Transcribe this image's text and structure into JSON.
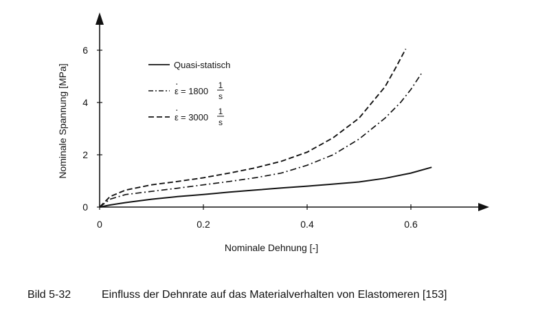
{
  "chart_data": {
    "type": "line",
    "xlabel": "Nominale Dehnung [-]",
    "ylabel": "Nominale Spannung [MPa]",
    "xlim": [
      0,
      0.75
    ],
    "ylim": [
      0,
      7
    ],
    "x_ticks": [
      "0",
      "0.2",
      "0.4",
      "0.6"
    ],
    "y_ticks": [
      "0",
      "2",
      "4",
      "6"
    ],
    "grid": false,
    "legend_position": "top-left",
    "series": [
      {
        "name": "Quasi-statisch",
        "style": "solid",
        "x": [
          0,
          0.02,
          0.05,
          0.1,
          0.15,
          0.2,
          0.25,
          0.3,
          0.35,
          0.4,
          0.45,
          0.5,
          0.55,
          0.6,
          0.64
        ],
        "y": [
          0,
          0.08,
          0.17,
          0.3,
          0.4,
          0.48,
          0.57,
          0.65,
          0.73,
          0.8,
          0.88,
          0.96,
          1.1,
          1.3,
          1.52
        ]
      },
      {
        "name": "ε̇ = 1800 1/s",
        "style": "dash-dot",
        "x": [
          0,
          0.02,
          0.05,
          0.1,
          0.15,
          0.2,
          0.25,
          0.3,
          0.35,
          0.4,
          0.45,
          0.5,
          0.55,
          0.58,
          0.6,
          0.62
        ],
        "y": [
          0,
          0.3,
          0.48,
          0.6,
          0.72,
          0.85,
          0.98,
          1.12,
          1.3,
          1.6,
          2.0,
          2.6,
          3.4,
          4.0,
          4.5,
          5.1
        ]
      },
      {
        "name": "ε̇ = 3000 1/s",
        "style": "dashed",
        "x": [
          0,
          0.02,
          0.05,
          0.1,
          0.15,
          0.2,
          0.25,
          0.3,
          0.35,
          0.4,
          0.45,
          0.5,
          0.55,
          0.57,
          0.59
        ],
        "y": [
          0,
          0.4,
          0.65,
          0.85,
          0.98,
          1.12,
          1.3,
          1.5,
          1.75,
          2.1,
          2.65,
          3.4,
          4.6,
          5.3,
          6.05
        ]
      }
    ]
  },
  "legend": {
    "item1": "Quasi-statisch",
    "item2_prefix": "= 1800",
    "item3_prefix": "= 3000",
    "epsilon_symbol": "ε",
    "epsilon_dot": "·",
    "frac_num": "1",
    "frac_den": "s"
  },
  "caption": {
    "label": "Bild 5-32",
    "text": "Einfluss der Dehnrate auf das Materialverhalten von Elastomeren [153]"
  }
}
